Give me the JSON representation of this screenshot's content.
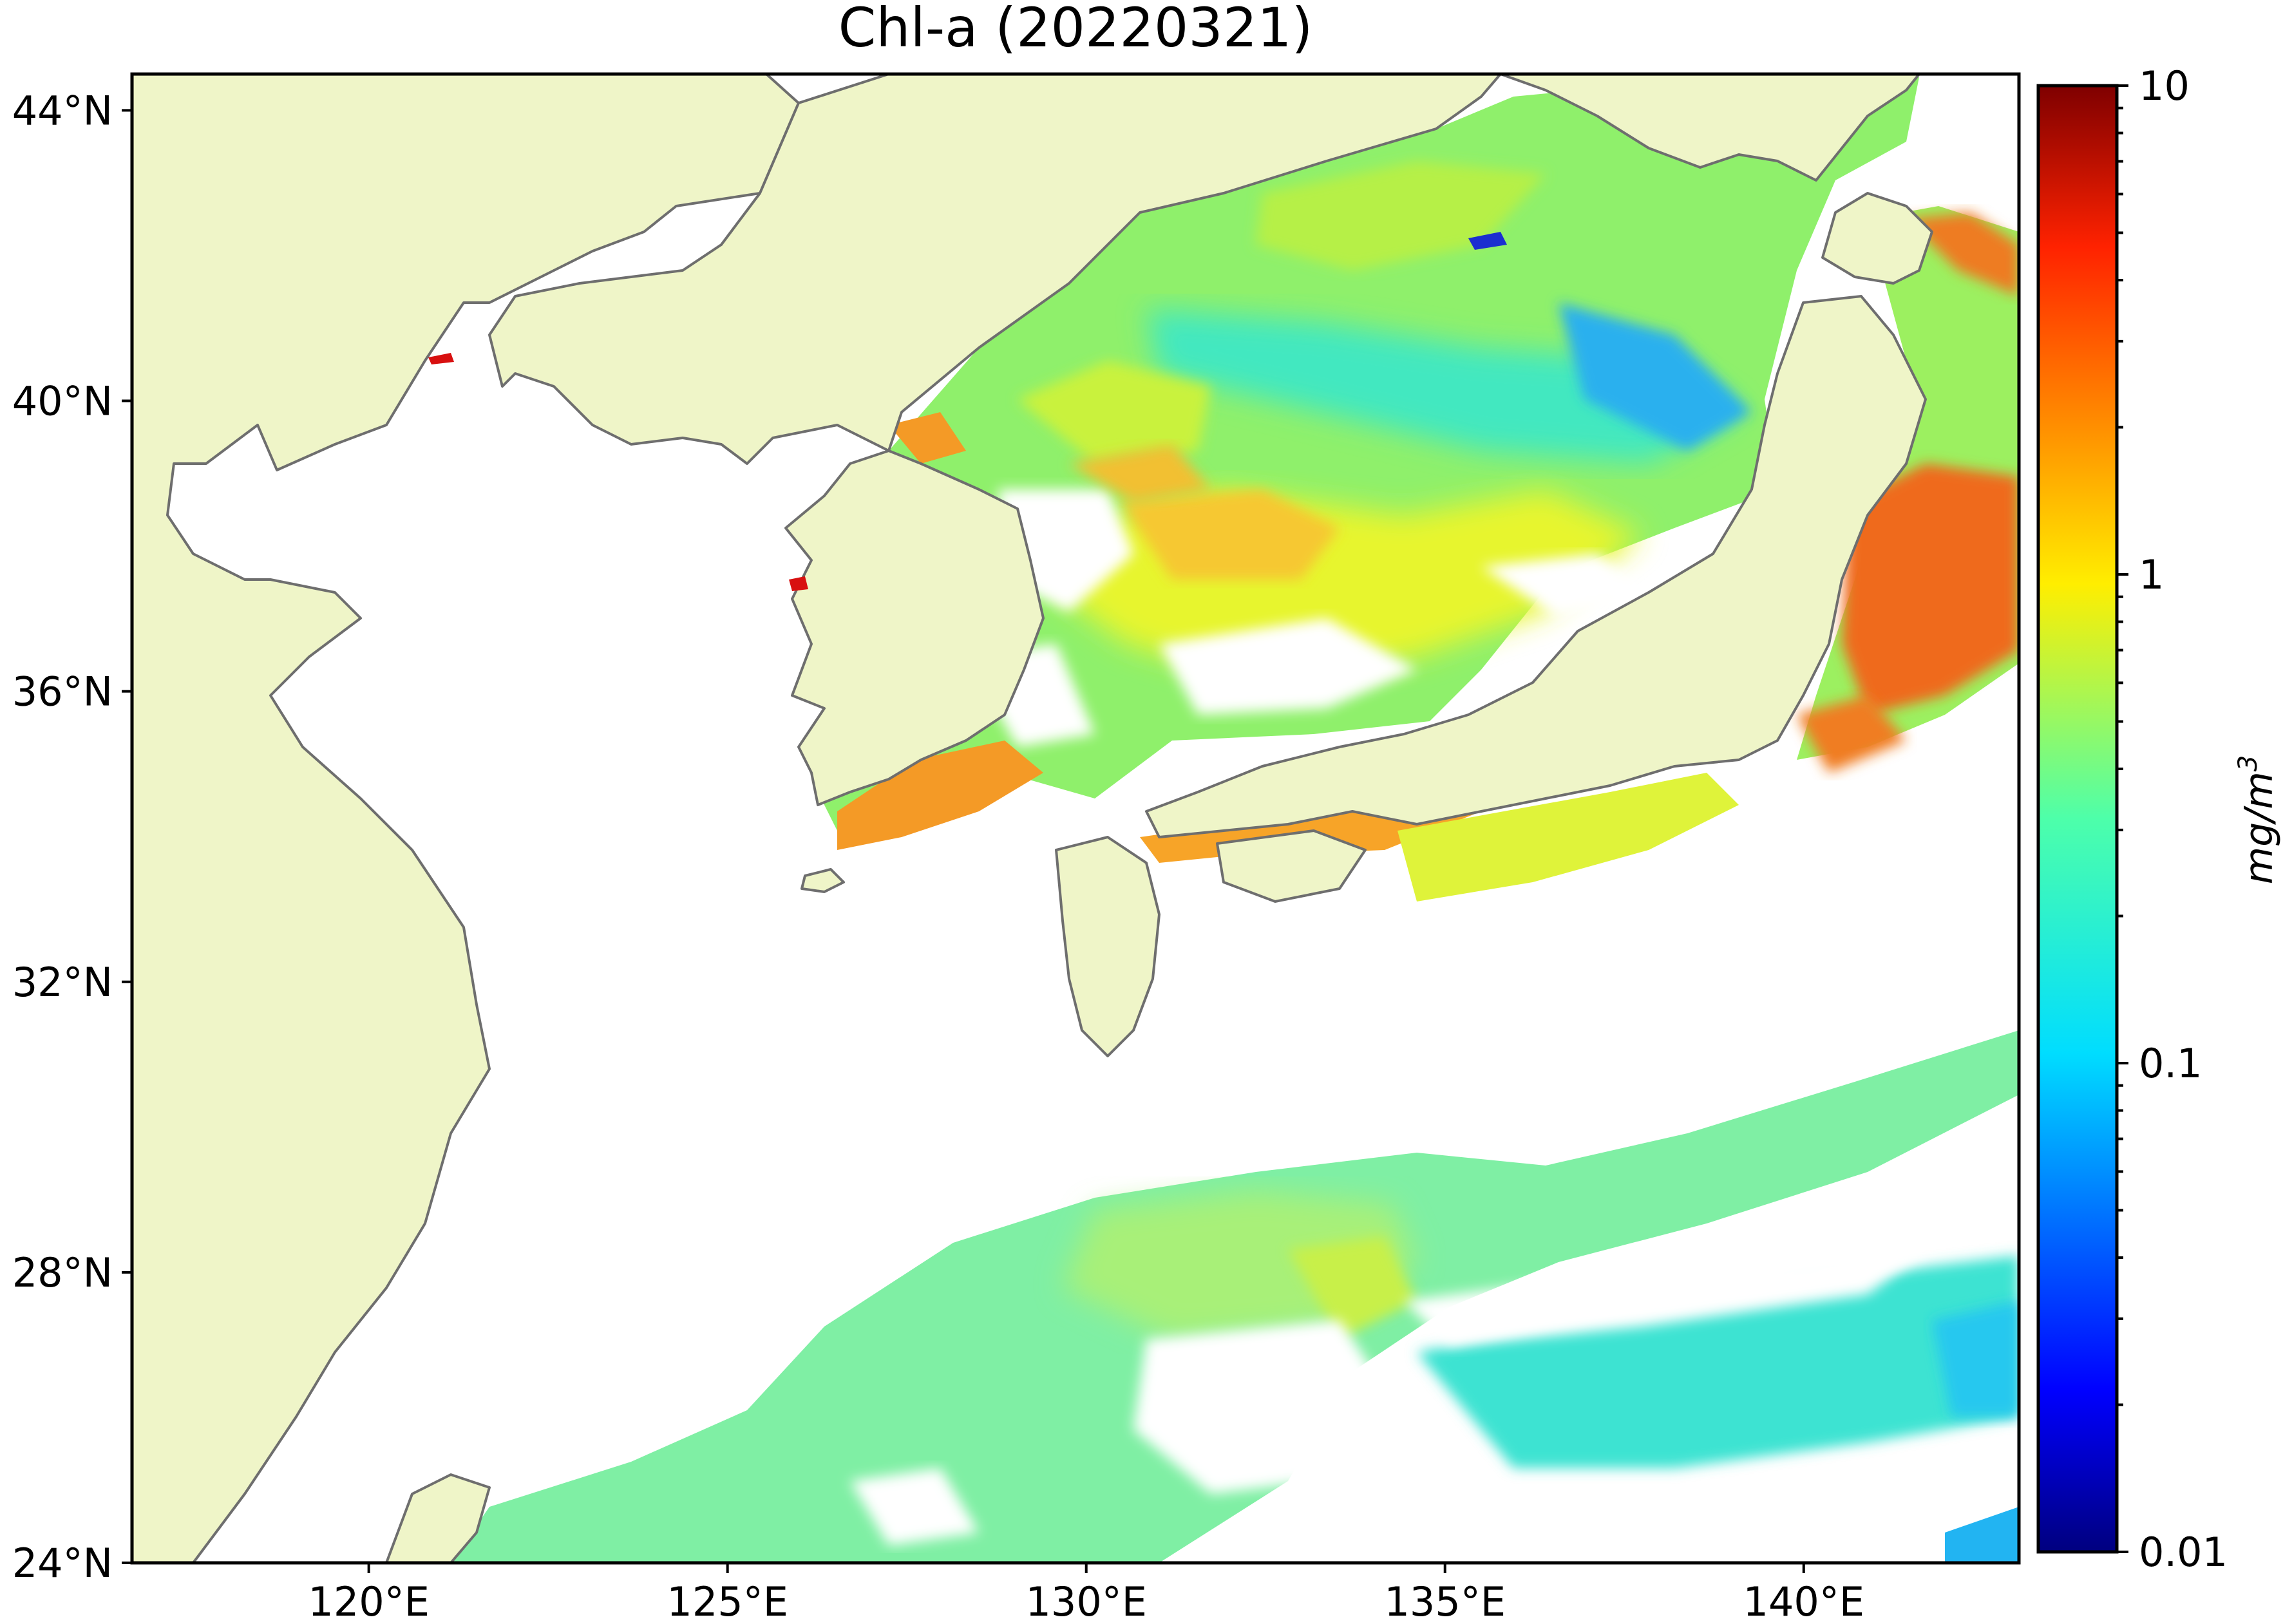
{
  "title": "Chl-a (20220321)",
  "map": {
    "extent": {
      "lon_min": 116.7,
      "lon_max": 143.0,
      "lat_min": 24.0,
      "lat_max": 44.5
    },
    "land_color": "#eff5c8",
    "no_data_color": "#ffffff",
    "coastline_color": "#6e6e6e",
    "lon_ticks": [
      120,
      125,
      130,
      135,
      140
    ],
    "lon_tick_labels": [
      "120°E",
      "125°E",
      "130°E",
      "135°E",
      "140°E"
    ],
    "lat_ticks": [
      24,
      28,
      32,
      36,
      40,
      44
    ],
    "lat_tick_labels": [
      "24°N",
      "28°N",
      "32°N",
      "36°N",
      "40°N",
      "44°N"
    ]
  },
  "colorbar": {
    "colormap": "jet",
    "scale": "log",
    "range": [
      0.01,
      10
    ],
    "tick_labels": [
      "10",
      "1",
      "0.1",
      "0.01"
    ],
    "unit": "mg/m",
    "unit_exponent": "3"
  }
}
